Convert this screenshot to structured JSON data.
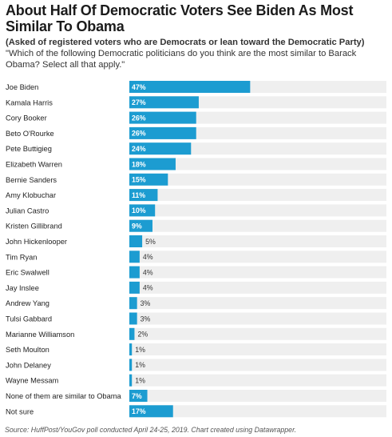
{
  "title": "About Half Of Democratic Voters See Biden As Most Similar To Obama",
  "subtitle_bold": "(Asked of registered voters who are Democrats or lean toward the Democratic Party)",
  "subtitle_rest": " \"Which of the following Democratic politicians do you think are the most similar to Barack Obama? Select all that apply.\"",
  "source": "Source: HuffPost/YouGov poll conducted April 24-25, 2019. Chart created using Datawrapper.",
  "colors": {
    "bar": "#1c9cd1",
    "track": "#efefef",
    "label_inside": "#ffffff",
    "label_outside": "#333333"
  },
  "chart_data": {
    "type": "bar",
    "orientation": "horizontal",
    "xlim": [
      0,
      100
    ],
    "value_suffix": "%",
    "categories": [
      "Joe Biden",
      "Kamala Harris",
      "Cory Booker",
      "Beto O'Rourke",
      "Pete Buttigieg",
      "Elizabeth Warren",
      "Bernie Sanders",
      "Amy Klobuchar",
      "Julian Castro",
      "Kristen Gillibrand",
      "John Hickenlooper",
      "Tim Ryan",
      "Eric Swalwell",
      "Jay Inslee",
      "Andrew Yang",
      "Tulsi Gabbard",
      "Marianne Williamson",
      "Seth Moulton",
      "John Delaney",
      "Wayne Messam",
      "None of them are similar to Obama",
      "Not sure"
    ],
    "values": [
      47,
      27,
      26,
      26,
      24,
      18,
      15,
      11,
      10,
      9,
      5,
      4,
      4,
      4,
      3,
      3,
      2,
      1,
      1,
      1,
      7,
      17
    ]
  }
}
